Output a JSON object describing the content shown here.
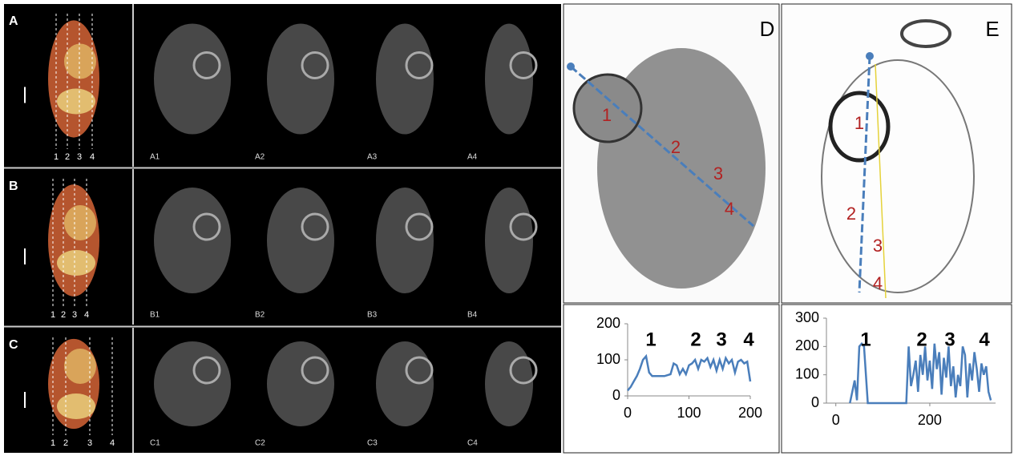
{
  "rows": [
    {
      "label": "A",
      "slices": [
        "1",
        "2",
        "3",
        "4"
      ],
      "images": [
        "A1",
        "A2",
        "A3",
        "A4"
      ]
    },
    {
      "label": "B",
      "slices": [
        "1",
        "2",
        "3",
        "4"
      ],
      "images": [
        "B1",
        "B2",
        "B3",
        "B4"
      ]
    },
    {
      "label": "C",
      "slices": [
        "1",
        "2",
        "3",
        "4"
      ],
      "images": [
        "C1",
        "C2",
        "C3",
        "C4"
      ]
    }
  ],
  "D": {
    "label": "D",
    "markers": [
      "1",
      "2",
      "3",
      "4"
    ]
  },
  "E": {
    "label": "E",
    "markers": [
      "1",
      "2",
      "3",
      "4"
    ]
  },
  "chart_data": [
    {
      "type": "line",
      "color": "#4a7ebb",
      "x": [
        0,
        5,
        10,
        15,
        20,
        25,
        30,
        35,
        40,
        50,
        60,
        70,
        75,
        80,
        85,
        90,
        95,
        100,
        105,
        110,
        115,
        120,
        125,
        130,
        135,
        140,
        145,
        150,
        155,
        160,
        165,
        170,
        175,
        180,
        185,
        190,
        195,
        200
      ],
      "values": [
        15,
        25,
        40,
        55,
        75,
        100,
        110,
        65,
        55,
        55,
        55,
        60,
        90,
        85,
        60,
        75,
        60,
        85,
        90,
        100,
        75,
        100,
        95,
        105,
        80,
        100,
        70,
        100,
        75,
        105,
        90,
        100,
        65,
        95,
        100,
        90,
        95,
        40
      ],
      "xlim": [
        0,
        200
      ],
      "ylim": [
        0,
        200
      ],
      "xticks": [
        0,
        100,
        200
      ],
      "yticks": [
        0,
        100,
        200
      ],
      "annotations": [
        "1",
        "2",
        "3",
        "4"
      ]
    },
    {
      "type": "line",
      "color": "#4a7ebb",
      "x": [
        30,
        40,
        45,
        50,
        55,
        60,
        68,
        100,
        150,
        155,
        160,
        165,
        170,
        175,
        180,
        185,
        190,
        195,
        200,
        205,
        210,
        215,
        220,
        225,
        230,
        235,
        240,
        245,
        250,
        255,
        260,
        265,
        270,
        275,
        280,
        285,
        290,
        295,
        300,
        305,
        310,
        315,
        320,
        325,
        330
      ],
      "values": [
        0,
        80,
        10,
        200,
        210,
        200,
        0,
        0,
        0,
        200,
        60,
        100,
        150,
        40,
        170,
        100,
        200,
        80,
        150,
        50,
        210,
        120,
        180,
        30,
        160,
        90,
        200,
        60,
        130,
        20,
        100,
        60,
        200,
        170,
        20,
        140,
        80,
        180,
        120,
        40,
        140,
        100,
        130,
        40,
        10
      ],
      "xlim": [
        -20,
        340
      ],
      "ylim": [
        0,
        300
      ],
      "xticks": [
        0,
        200
      ],
      "yticks": [
        0,
        100,
        200,
        300
      ],
      "annotations": [
        "1",
        "2",
        "3",
        "4"
      ]
    }
  ]
}
